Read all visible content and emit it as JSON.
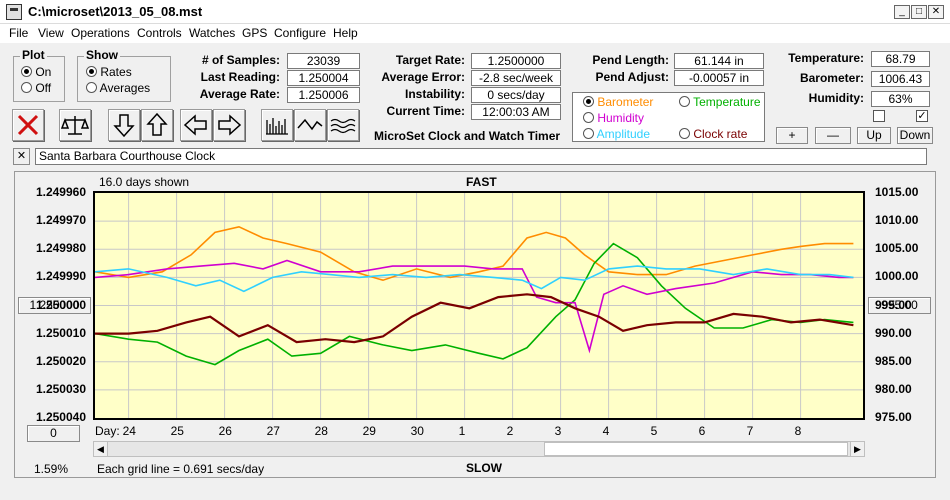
{
  "window": {
    "title": "C:\\microset\\2013_05_08.mst"
  },
  "menu": [
    "File",
    "View",
    "Operations",
    "Controls",
    "Watches",
    "GPS",
    "Configure",
    "Help"
  ],
  "plot_group": {
    "title": "Plot",
    "on": "On",
    "off": "Off",
    "selected": "On"
  },
  "show_group": {
    "title": "Show",
    "rates": "Rates",
    "averages": "Averages",
    "selected": "Rates"
  },
  "stats": {
    "samples_label": "# of Samples:",
    "samples": "23039",
    "last_reading_label": "Last Reading:",
    "last_reading": "1.250004",
    "average_rate_label": "Average Rate:",
    "average_rate": "1.250006",
    "target_rate_label": "Target Rate:",
    "target_rate": "1.2500000",
    "average_error_label": "Average Error:",
    "average_error": "-2.8 sec/week",
    "instability_label": "Instability:",
    "instability": "0 secs/day",
    "current_time_label": "Current Time:",
    "current_time": "12:00:03 AM",
    "pend_length_label": "Pend Length:",
    "pend_length": "61.144 in",
    "pend_adjust_label": "Pend Adjust:",
    "pend_adjust": "-0.00057 in",
    "temperature_label": "Temperature:",
    "temperature": "68.79",
    "barometer_label": "Barometer:",
    "barometer": "1006.43",
    "humidity_label": "Humidity:",
    "humidity": "63%"
  },
  "app_caption": "MicroSet Clock and Watch Timer",
  "legend": {
    "barometer": "Barometer",
    "temperature": "Temperature",
    "humidity": "Humidity",
    "amplitude": "Amplitude",
    "clock_rate": "Clock rate"
  },
  "colors": {
    "barometer": "#ff8c00",
    "temperature": "#00b000",
    "humidity": "#d000d0",
    "amplitude": "#30d0ff",
    "clock_rate": "#7a0000",
    "plot_bg": "#ffffc8"
  },
  "zoom_buttons": {
    "plus": "+",
    "minus": "—",
    "up": "Up",
    "down": "Down"
  },
  "clock_name": "Santa Barbara Courthouse Clock",
  "chart": {
    "days_shown": "16.0 days shown",
    "top_label": "FAST",
    "bottom_label": "SLOW",
    "grid_note": "Each grid line = 0.691 secs/day",
    "percent": "1.59%",
    "left_button": "1.250000",
    "right_button": "995.00",
    "bottom_left_button": "0",
    "day_prefix": "Day:"
  },
  "chart_data": {
    "type": "line",
    "left_ticks": [
      "1.249960",
      "1.249970",
      "1.249980",
      "1.249990",
      "1.250000",
      "1.250010",
      "1.250020",
      "1.250030",
      "1.250040"
    ],
    "right_ticks": [
      "1015.00",
      "1010.00",
      "1005.00",
      "1000.00",
      "995.00",
      "990.00",
      "985.00",
      "980.00",
      "975.00"
    ],
    "x_ticks": [
      "24",
      "25",
      "26",
      "27",
      "28",
      "29",
      "30",
      "1",
      "2",
      "3",
      "4",
      "5",
      "6",
      "7",
      "8"
    ],
    "x_range": [
      23.3,
      39.3
    ],
    "x_tick_values": [
      24,
      25,
      26,
      27,
      28,
      29,
      30,
      31,
      32,
      33,
      34,
      35,
      36,
      37,
      38
    ],
    "y_left_range": [
      1.24996,
      1.25004
    ],
    "y_right_range": [
      975,
      1015
    ],
    "series": [
      {
        "name": "Barometer",
        "axis": "right",
        "x": [
          23.3,
          24,
          24.7,
          25.3,
          25.8,
          26.3,
          26.8,
          27.3,
          28,
          28.7,
          29.3,
          30,
          30.7,
          31.3,
          31.8,
          32.3,
          32.7,
          33.1,
          33.5,
          34,
          34.6,
          35.2,
          35.8,
          36.4,
          37,
          37.6,
          38,
          38.5,
          39.1
        ],
        "y": [
          1001,
          1000,
          1001,
          1004,
          1008,
          1009,
          1007,
          1006,
          1004.5,
          1001,
          999.5,
          1001.5,
          1000,
          1001,
          1002,
          1007,
          1008,
          1007,
          1004,
          1001,
          1000.5,
          1000.5,
          1002,
          1003,
          1004,
          1005,
          1005.5,
          1006,
          1006
        ]
      },
      {
        "name": "Temperature",
        "axis": "left",
        "x": [
          23.3,
          24,
          24.6,
          25.2,
          25.8,
          26.3,
          26.9,
          27.4,
          28,
          28.6,
          29.3,
          29.9,
          30.6,
          31.3,
          31.8,
          32.3,
          32.9,
          33.3,
          33.7,
          34.1,
          34.6,
          35.1,
          35.6,
          36.2,
          36.8,
          37.4,
          38,
          38.5,
          39.1
        ],
        "y": [
          1.25001,
          1.250012,
          1.250013,
          1.250018,
          1.250021,
          1.250016,
          1.250012,
          1.250018,
          1.250017,
          1.250011,
          1.250014,
          1.250016,
          1.250014,
          1.250017,
          1.250019,
          1.250015,
          1.250004,
          1.249998,
          1.249985,
          1.249978,
          1.249983,
          1.249993,
          1.250001,
          1.250008,
          1.250008,
          1.250005,
          1.250006,
          1.250005,
          1.250006
        ]
      },
      {
        "name": "Humidity",
        "axis": "left",
        "x": [
          23.3,
          24,
          24.8,
          25.5,
          26.2,
          26.8,
          27.3,
          28,
          28.8,
          29.5,
          30.3,
          31,
          31.6,
          32.2,
          32.5,
          32.9,
          33.3,
          33.6,
          33.9,
          34.3,
          34.8,
          35.4,
          36.2,
          37,
          37.6,
          38.2,
          38.8,
          39.1
        ],
        "y": [
          1.24999,
          1.249989,
          1.249987,
          1.249986,
          1.249985,
          1.249987,
          1.249984,
          1.249988,
          1.249988,
          1.249986,
          1.249986,
          1.249986,
          1.249987,
          1.249987,
          1.249997,
          1.249999,
          1.249999,
          1.250016,
          1.249996,
          1.249993,
          1.249996,
          1.249994,
          1.249992,
          1.249988,
          1.249989,
          1.249989,
          1.24999,
          1.24999
        ]
      },
      {
        "name": "Amplitude",
        "axis": "left",
        "x": [
          23.3,
          24,
          24.8,
          25.4,
          25.9,
          26.4,
          27,
          27.6,
          28.2,
          28.8,
          29.5,
          30.2,
          30.9,
          31.6,
          32.2,
          32.6,
          33,
          33.5,
          34,
          34.6,
          35.2,
          35.9,
          36.6,
          37.3,
          38,
          38.6,
          39.1
        ],
        "y": [
          1.249988,
          1.249987,
          1.24999,
          1.249993,
          1.249991,
          1.249995,
          1.24999,
          1.249988,
          1.249989,
          1.24999,
          1.249989,
          1.24999,
          1.249989,
          1.24999,
          1.249991,
          1.249994,
          1.24999,
          1.249991,
          1.249987,
          1.249986,
          1.249987,
          1.249987,
          1.249989,
          1.249987,
          1.249989,
          1.249989,
          1.24999
        ]
      },
      {
        "name": "Clock rate",
        "axis": "left",
        "x": [
          23.3,
          24,
          24.6,
          25.2,
          25.7,
          26.3,
          26.9,
          27.5,
          28.1,
          28.7,
          29.3,
          29.9,
          30.5,
          31.1,
          31.7,
          32.3,
          32.8,
          33.3,
          33.8,
          34.3,
          34.8,
          35.4,
          36,
          36.6,
          37.2,
          37.8,
          38.4,
          39.1
        ],
        "y": [
          1.25001,
          1.25001,
          1.250009,
          1.250006,
          1.250004,
          1.250011,
          1.250007,
          1.250013,
          1.250012,
          1.250013,
          1.250011,
          1.250004,
          1.249999,
          1.250001,
          1.249997,
          1.249996,
          1.249997,
          1.250001,
          1.250004,
          1.250009,
          1.250007,
          1.250006,
          1.250006,
          1.250003,
          1.250004,
          1.250006,
          1.250005,
          1.250007
        ]
      }
    ]
  }
}
